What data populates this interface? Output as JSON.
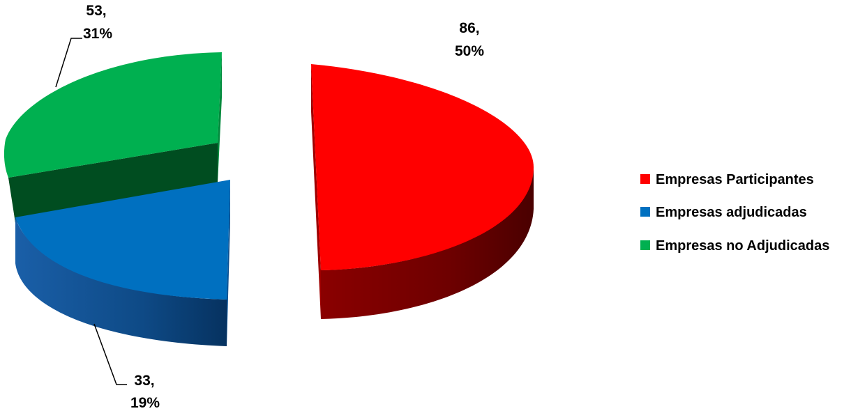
{
  "chart_data": {
    "type": "pie",
    "style": "3d-exploded",
    "title": "",
    "categories": [
      "Empresas Participantes",
      "Empresas adjudicadas",
      "Empresas no Adjudicadas"
    ],
    "values": [
      86,
      33,
      53
    ],
    "percents": [
      "50%",
      "19%",
      "31%"
    ],
    "data_labels": [
      {
        "value": "86,",
        "percent": "50%"
      },
      {
        "value": "33,",
        "percent": "19%"
      },
      {
        "value": "53,",
        "percent": "31%"
      }
    ],
    "colors": [
      "#ff0000",
      "#0070c0",
      "#00b050"
    ],
    "legend_position": "right"
  }
}
